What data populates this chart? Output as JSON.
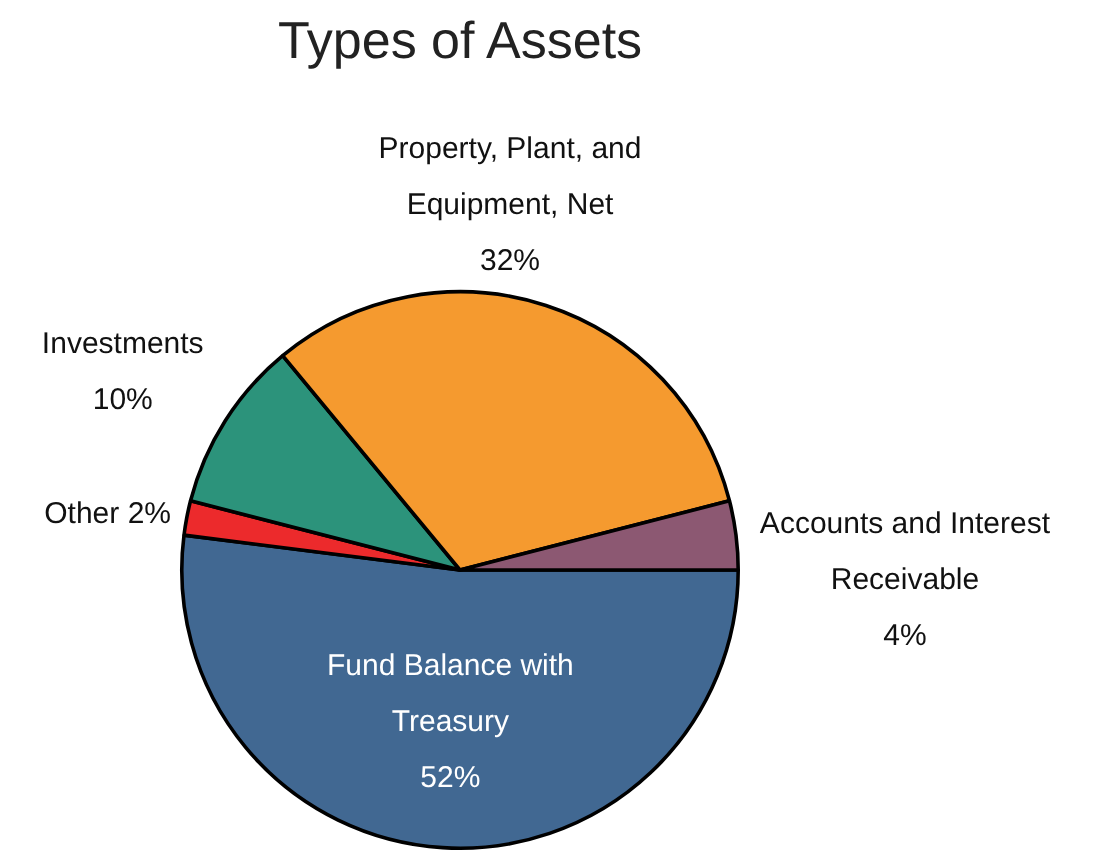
{
  "chart_data": {
    "type": "pie",
    "title": "Types of Assets",
    "categories": [
      "Fund Balance with Treasury",
      "Other",
      "Investments",
      "Property, Plant, and Equipment, Net",
      "Accounts and Interest Receivable"
    ],
    "values": [
      52,
      2,
      10,
      32,
      4
    ],
    "value_labels": [
      "52%",
      "2%",
      "10%",
      "32%",
      "4%"
    ],
    "colors": [
      "#416892",
      "#ec2a2c",
      "#2c937b",
      "#f59a2f",
      "#8c5872"
    ]
  }
}
